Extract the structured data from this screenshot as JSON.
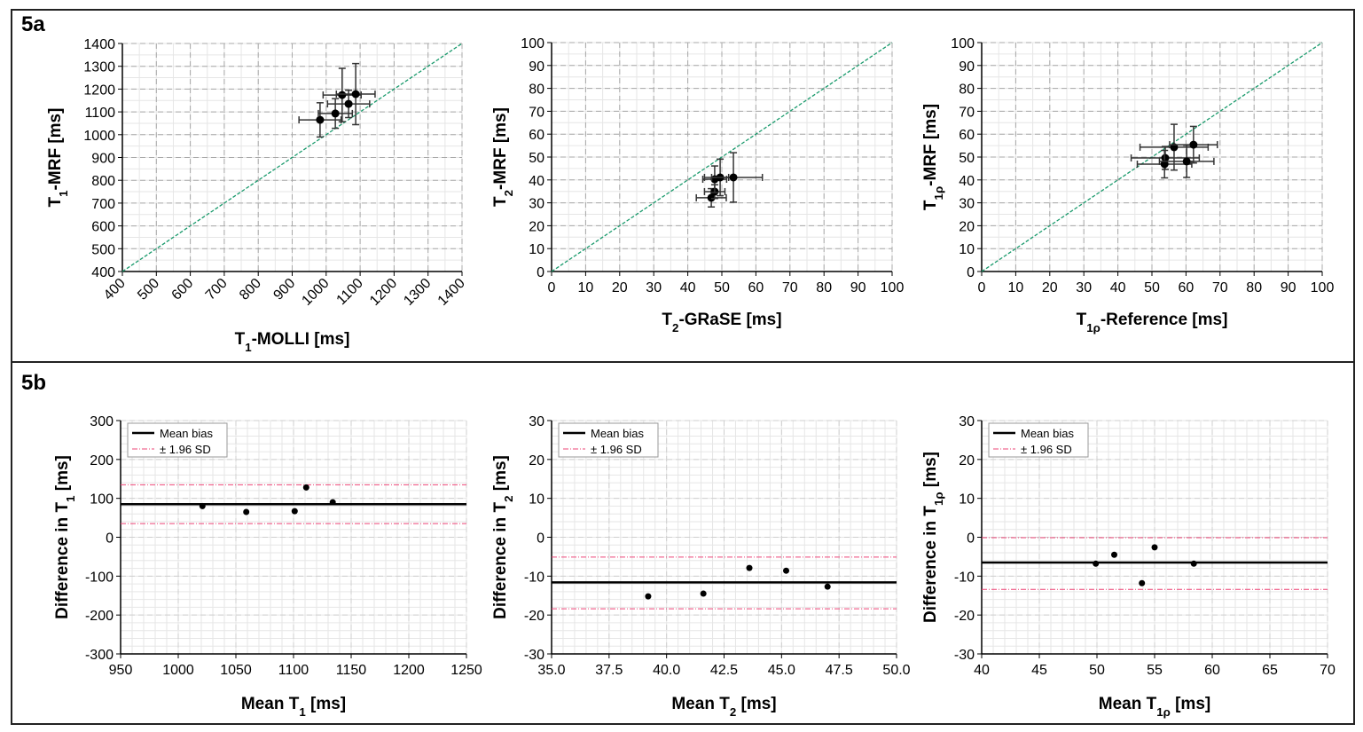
{
  "sections": {
    "a": "5a",
    "b": "5b"
  },
  "chart_data": [
    {
      "type": "scatter",
      "id": "a1",
      "xlabel": {
        "pre": "T",
        "sub": "1",
        "post": "-MOLLI [ms]"
      },
      "ylabel": {
        "pre": "T",
        "sub": "1",
        "post": "-MRF [ms]"
      },
      "xlim": [
        400,
        1400
      ],
      "ylim": [
        400,
        1400
      ],
      "xticks": [
        400,
        500,
        600,
        700,
        800,
        900,
        1000,
        1100,
        1200,
        1300,
        1400
      ],
      "yticks": [
        400,
        500,
        600,
        700,
        800,
        900,
        1000,
        1100,
        1200,
        1300,
        1400
      ],
      "xtick_rotate": true,
      "identity_line": true,
      "line_color": "#1a9a6c",
      "points": [
        {
          "x": 982,
          "y": 1065,
          "xerr": 62,
          "yerr": 75
        },
        {
          "x": 1027,
          "y": 1093,
          "xerr": 50,
          "yerr": 65
        },
        {
          "x": 1047,
          "y": 1174,
          "xerr": 56,
          "yerr": 117
        },
        {
          "x": 1066,
          "y": 1135,
          "xerr": 62,
          "yerr": 60
        },
        {
          "x": 1087,
          "y": 1178,
          "xerr": 57,
          "yerr": 134
        }
      ]
    },
    {
      "type": "scatter",
      "id": "a2",
      "xlabel": {
        "pre": "T",
        "sub": "2",
        "post": "-GRaSE [ms]"
      },
      "ylabel": {
        "pre": "T",
        "sub": "2",
        "post": "-MRF [ms]"
      },
      "xlim": [
        0,
        100
      ],
      "ylim": [
        0,
        100
      ],
      "xticks": [
        0,
        10,
        20,
        30,
        40,
        50,
        60,
        70,
        80,
        90,
        100
      ],
      "yticks": [
        0,
        10,
        20,
        30,
        40,
        50,
        60,
        70,
        80,
        90,
        100
      ],
      "identity_line": true,
      "line_color": "#1a9a6c",
      "points": [
        {
          "x": 46.9,
          "y": 32.2,
          "xerr": 4.4,
          "yerr": 4
        },
        {
          "x": 47.9,
          "y": 34.9,
          "xerr": 3,
          "yerr": 3
        },
        {
          "x": 47.9,
          "y": 40.3,
          "xerr": 3.5,
          "yerr": 5.8
        },
        {
          "x": 49.5,
          "y": 41.1,
          "xerr": 2.5,
          "yerr": 8
        },
        {
          "x": 53.4,
          "y": 41.1,
          "xerr": 8.5,
          "yerr": 10.8
        }
      ]
    },
    {
      "type": "scatter",
      "id": "a3",
      "xlabel": {
        "pre": "T",
        "sub": "1ρ",
        "post": "-Reference [ms]"
      },
      "ylabel": {
        "pre": "T",
        "sub": "1ρ",
        "post": "-MRF [ms]"
      },
      "xlim": [
        0,
        100
      ],
      "ylim": [
        0,
        100
      ],
      "xticks": [
        0,
        10,
        20,
        30,
        40,
        50,
        60,
        70,
        80,
        90,
        100
      ],
      "yticks": [
        0,
        10,
        20,
        30,
        40,
        50,
        60,
        70,
        80,
        90,
        100
      ],
      "identity_line": true,
      "line_color": "#1a9a6c",
      "points": [
        {
          "x": 53.9,
          "y": 49.6,
          "xerr": 10,
          "yerr": 5
        },
        {
          "x": 53.7,
          "y": 46.9,
          "xerr": 8,
          "yerr": 6
        },
        {
          "x": 56.5,
          "y": 54.3,
          "xerr": 10,
          "yerr": 10
        },
        {
          "x": 62.2,
          "y": 55.4,
          "xerr": 7,
          "yerr": 8
        },
        {
          "x": 60.2,
          "y": 48.1,
          "xerr": 8,
          "yerr": 7
        }
      ]
    },
    {
      "type": "scatter",
      "id": "b1",
      "subtype": "bland-altman",
      "xlabel": {
        "pre": "Mean T",
        "sub": "1",
        "post": " [ms]"
      },
      "ylabel": {
        "pre": "Difference in T",
        "sub": "1",
        "post": " [ms]"
      },
      "xlim": [
        950,
        1250
      ],
      "ylim": [
        -300,
        300
      ],
      "xticks": [
        950,
        1000,
        1050,
        1100,
        1150,
        1200,
        1250
      ],
      "yticks": [
        -300,
        -200,
        -100,
        0,
        100,
        200,
        300
      ],
      "mean_bias": 85,
      "loa": [
        135,
        35
      ],
      "legend": [
        "Mean bias",
        "± 1.96 SD"
      ],
      "legend_placement": "top-left",
      "points": [
        {
          "x": 1021,
          "y": 80
        },
        {
          "x": 1059,
          "y": 65
        },
        {
          "x": 1101,
          "y": 67
        },
        {
          "x": 1111,
          "y": 128
        },
        {
          "x": 1134,
          "y": 90
        }
      ]
    },
    {
      "type": "scatter",
      "id": "b2",
      "subtype": "bland-altman",
      "xlabel": {
        "pre": "Mean T",
        "sub": "2",
        "post": " [ms]"
      },
      "ylabel": {
        "pre": "Difference in T",
        "sub": "2",
        "post": " [ms]"
      },
      "xlim": [
        35,
        50
      ],
      "ylim": [
        -30,
        30
      ],
      "xticks": [
        "35.0",
        "37.5",
        "40.0",
        "42.5",
        "45.0",
        "47.5",
        "50.0"
      ],
      "yticks": [
        -30,
        -20,
        -10,
        0,
        10,
        20,
        30
      ],
      "mean_bias": -11.6,
      "loa": [
        -5.1,
        -18.4
      ],
      "legend": [
        "Mean bias",
        "± 1.96 SD"
      ],
      "legend_placement": "top-left",
      "points": [
        {
          "x": 39.2,
          "y": -15.2
        },
        {
          "x": 41.6,
          "y": -14.5
        },
        {
          "x": 43.6,
          "y": -7.9
        },
        {
          "x": 45.2,
          "y": -8.6
        },
        {
          "x": 47.0,
          "y": -12.7
        }
      ]
    },
    {
      "type": "scatter",
      "id": "b3",
      "subtype": "bland-altman",
      "xlabel": {
        "pre": "Mean T",
        "sub": "1ρ",
        "post": " [ms]"
      },
      "ylabel": {
        "pre": "Difference in T",
        "sub": "1ρ",
        "post": " [ms]"
      },
      "xlim": [
        40,
        70
      ],
      "ylim": [
        -30,
        30
      ],
      "xticks": [
        40,
        45,
        50,
        55,
        60,
        65,
        70
      ],
      "yticks": [
        -30,
        -20,
        -10,
        0,
        10,
        20,
        30
      ],
      "mean_bias": -6.5,
      "loa": [
        -0.1,
        -13.4
      ],
      "legend": [
        "Mean bias",
        "± 1.96 SD"
      ],
      "legend_placement": "top-left",
      "points": [
        {
          "x": 49.9,
          "y": -6.8
        },
        {
          "x": 51.5,
          "y": -4.5
        },
        {
          "x": 55.0,
          "y": -2.6
        },
        {
          "x": 53.9,
          "y": -11.8
        },
        {
          "x": 58.4,
          "y": -6.8
        }
      ]
    }
  ]
}
